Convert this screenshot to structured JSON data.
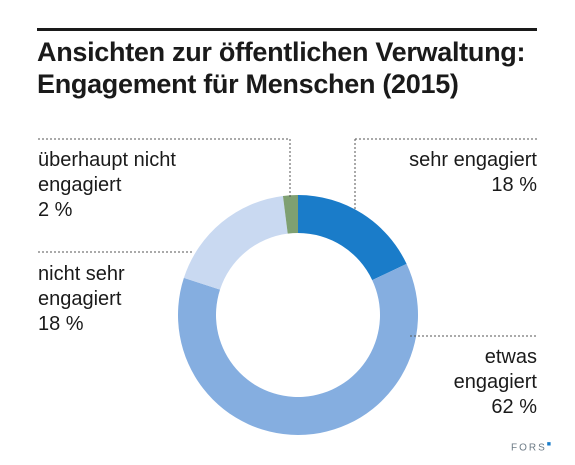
{
  "header": {
    "title_line1": "Ansichten zur öffentlichen Verwaltung:",
    "title_line2": "Engagement für Menschen (2015)"
  },
  "colors": {
    "sehr_engagiert": "#1a7cc9",
    "etwas_engagiert": "#85aee0",
    "nicht_sehr_engagiert": "#c9d9f1",
    "ueberhaupt_nicht_engagiert": "#7fa072",
    "leader": "#555555"
  },
  "chart_data": {
    "type": "pie",
    "donut": true,
    "slices": [
      {
        "key": "sehr",
        "label_lines": [
          "sehr engagiert"
        ],
        "value": 18,
        "value_text": "18 %"
      },
      {
        "key": "etwas",
        "label_lines": [
          "etwas",
          "engagiert"
        ],
        "value": 62,
        "value_text": "62 %"
      },
      {
        "key": "nicht_sehr",
        "label_lines": [
          "nicht sehr",
          "engagiert"
        ],
        "value": 18,
        "value_text": "18 %"
      },
      {
        "key": "ueberhaupt",
        "label_lines": [
          "überhaupt nicht",
          "engagiert"
        ],
        "value": 2,
        "value_text": "2 %"
      }
    ]
  },
  "footer": {
    "brand": "FORS",
    "brand_mark": "■"
  }
}
